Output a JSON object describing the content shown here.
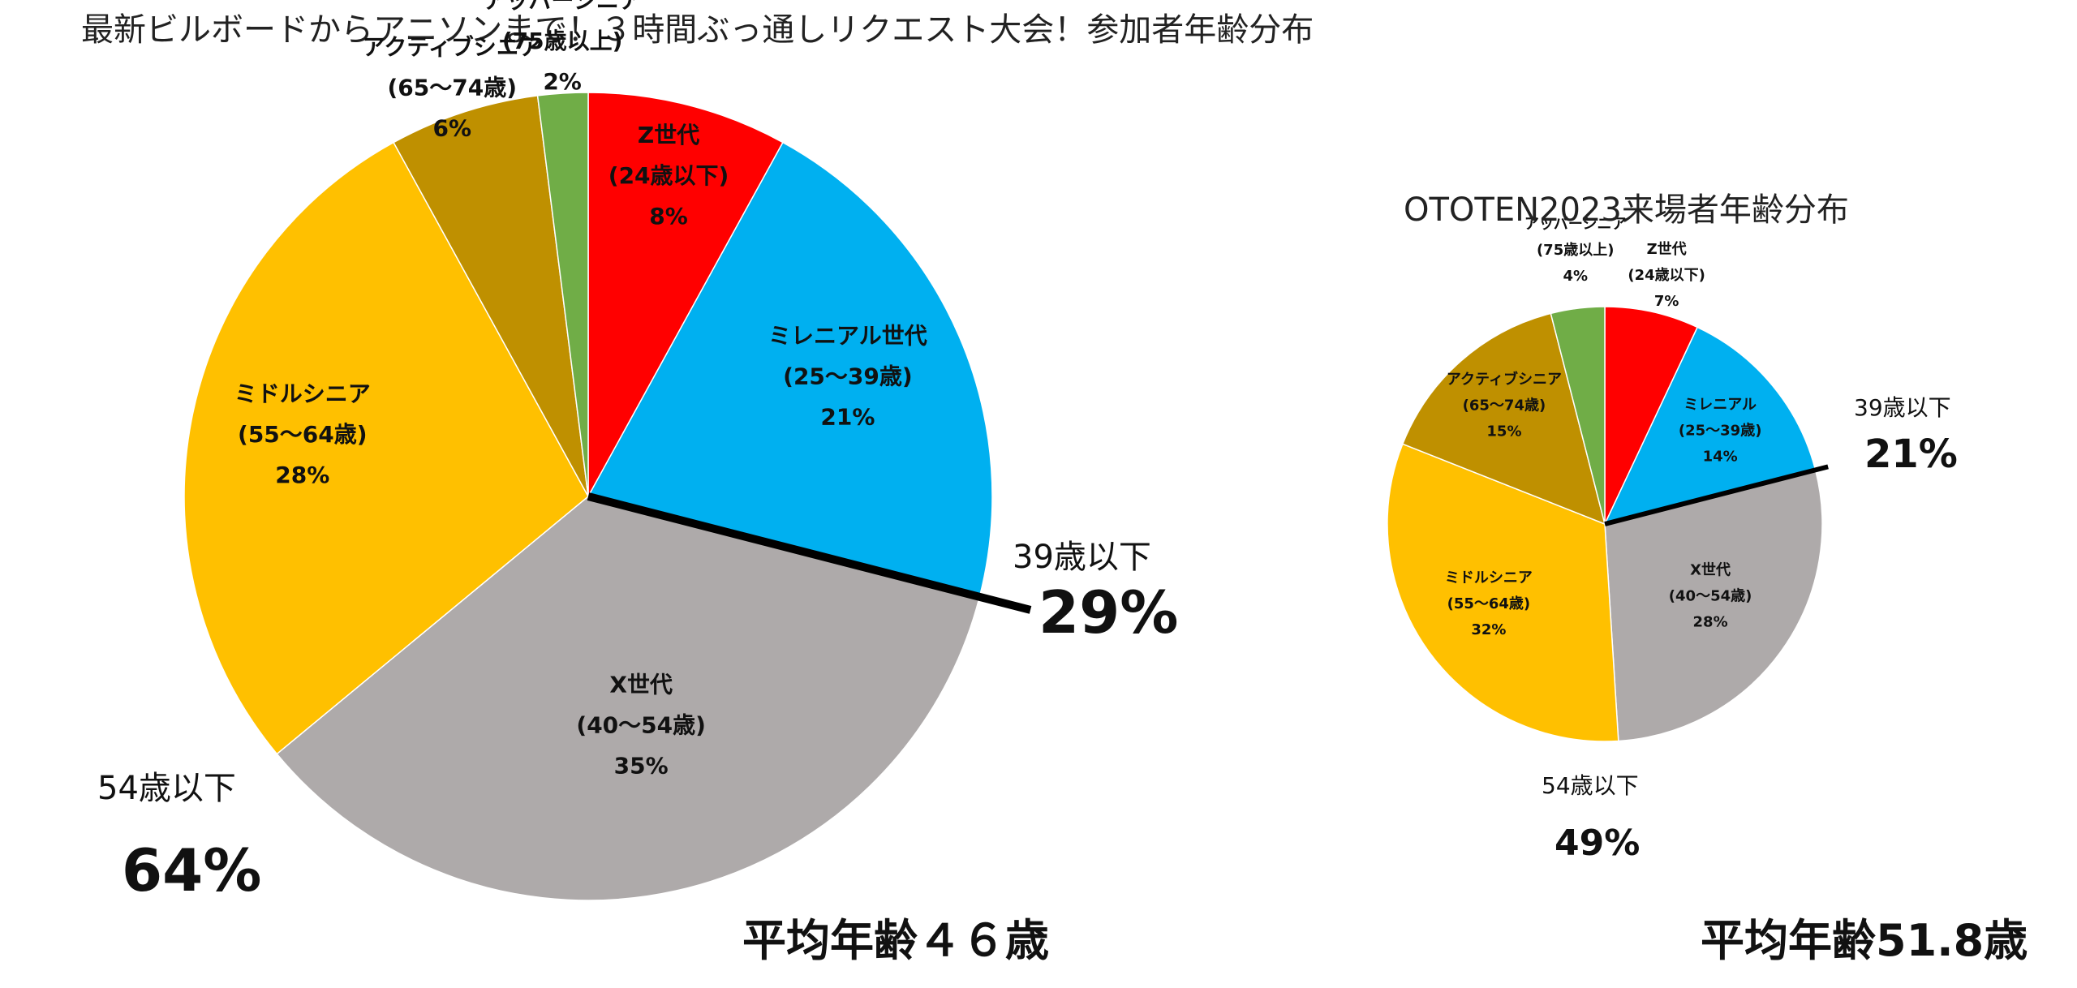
{
  "page": {
    "main_title": "最新ビルボードからアニソンまで！３時間ぶっ通しリクエスト大会！参加者年齢分布",
    "ototen_title": "OTOTEN2023来場者年齢分布"
  },
  "chart_data": [
    {
      "type": "pie",
      "title": "最新ビルボードからアニソンまで！３時間ぶっ通しリクエスト大会！参加者年齢分布",
      "slices": [
        {
          "name": "Z世代",
          "sub": "(24歳以下)",
          "pct_label": "8%",
          "value": 8,
          "color": "#ff0000"
        },
        {
          "name": "ミレニアル世代",
          "sub": "(25～39歳)",
          "pct_label": "21%",
          "value": 21,
          "color": "#00b0f0"
        },
        {
          "name": "X世代",
          "sub": "(40～54歳)",
          "pct_label": "35%",
          "value": 35,
          "color": "#aeaaaa"
        },
        {
          "name": "ミドルシニア",
          "sub": "(55～64歳)",
          "pct_label": "28%",
          "value": 28,
          "color": "#ffc000"
        },
        {
          "name": "アクティブシニア",
          "sub": "(65～74歳)",
          "pct_label": "6%",
          "value": 6,
          "color": "#bf9000"
        },
        {
          "name": "アッパーシニア",
          "sub": "(75歳以上)",
          "pct_label": "2%",
          "value": 2,
          "color": "#70ad47"
        }
      ],
      "annotations": {
        "under39_label": "39歳以下",
        "under39_value": "29%",
        "under54_label": "54歳以下",
        "under54_value": "64%",
        "average": "平均年齢４６歳"
      }
    },
    {
      "type": "pie",
      "title": "OTOTEN2023来場者年齢分布",
      "slices": [
        {
          "name": "Z世代",
          "sub": "(24歳以下)",
          "pct_label": "7%",
          "value": 7,
          "color": "#ff0000"
        },
        {
          "name": "ミレニアル",
          "sub": "(25～39歳)",
          "pct_label": "14%",
          "value": 14,
          "color": "#00b0f0"
        },
        {
          "name": "X世代",
          "sub": "(40～54歳)",
          "pct_label": "28%",
          "value": 28,
          "color": "#aeaaaa"
        },
        {
          "name": "ミドルシニア",
          "sub": "(55～64歳)",
          "pct_label": "32%",
          "value": 32,
          "color": "#ffc000"
        },
        {
          "name": "アクティブシニア",
          "sub": "(65～74歳)",
          "pct_label": "15%",
          "value": 15,
          "color": "#bf9000"
        },
        {
          "name": "アッパーシニア",
          "sub": "(75歳以上)",
          "pct_label": "4%",
          "value": 4,
          "color": "#70ad47"
        }
      ],
      "annotations": {
        "under39_label": "39歳以下",
        "under39_value": "21%",
        "under54_label": "54歳以下",
        "under54_value": "49%",
        "average": "平均年齢51.8歳"
      }
    }
  ]
}
